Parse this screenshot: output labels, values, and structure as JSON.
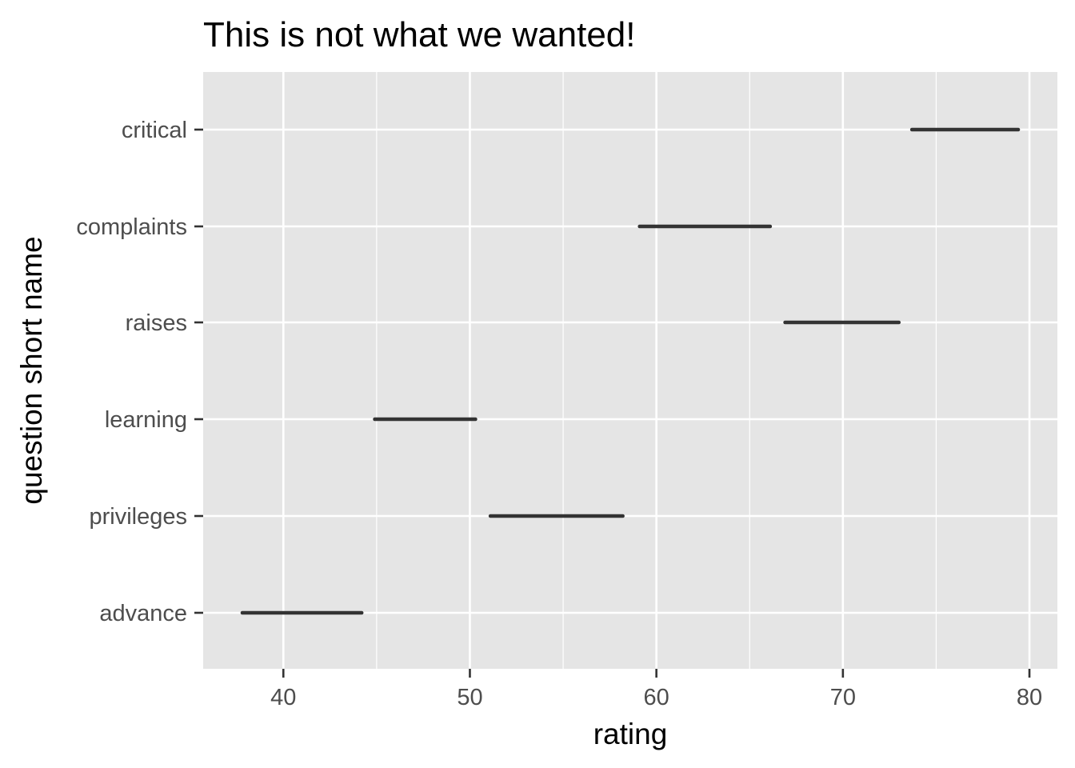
{
  "chart_data": {
    "type": "range",
    "title": "This is not what we wanted!",
    "xlabel": "rating",
    "ylabel": "question short name",
    "xlim": [
      35.7,
      81.5
    ],
    "x_ticks": [
      40,
      50,
      60,
      70,
      80
    ],
    "x_minor_ticks": [
      45,
      55,
      65,
      75
    ],
    "grid": true,
    "categories": [
      "critical",
      "complaints",
      "raises",
      "learning",
      "privileges",
      "advance"
    ],
    "ranges": [
      {
        "category": "critical",
        "low": 73.7,
        "high": 79.4
      },
      {
        "category": "complaints",
        "low": 59.1,
        "high": 66.1
      },
      {
        "category": "raises",
        "low": 66.9,
        "high": 73.0
      },
      {
        "category": "learning",
        "low": 44.9,
        "high": 50.3
      },
      {
        "category": "privileges",
        "low": 51.1,
        "high": 58.2
      },
      {
        "category": "advance",
        "low": 37.8,
        "high": 44.2
      }
    ],
    "colors": {
      "panel_background": "#e5e5e5",
      "grid_line": "#ffffff",
      "range_line": "#333333",
      "tick_text": "#4d4d4d",
      "axis_tick": "#333333"
    }
  }
}
